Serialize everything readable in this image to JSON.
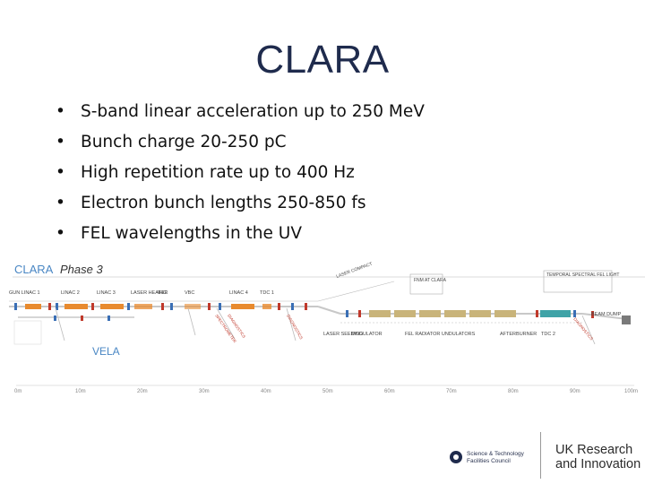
{
  "title": "CLARA",
  "bullets": [
    "S-band linear acceleration up to 250 MeV",
    "Bunch charge 20-250 pC",
    "High repetition rate up to 400 Hz",
    "Electron bunch lengths 250-850 fs",
    "FEL wavelengths in the UV"
  ],
  "diagram": {
    "machine_label": "CLARA",
    "phase_label": "Phase 3",
    "vela_label": "VELA",
    "section_labels": {
      "gun_linac1": "GUN LINAC 1",
      "linac2": "LINAC 2",
      "linac3": "LINAC 3",
      "laser_heater": "LASER HEATER",
      "four_hc": "4HC",
      "vbc": "VBC",
      "linac4": "LINAC 4",
      "tdc1": "TDC 1",
      "laser_compact": "LASER COMPACT",
      "fnm_at_clara": "FNM AT CLARA",
      "temporal_spectral": "TEMPORAL SPECTRAL FEL LIGHT",
      "beam_dump": "BEAM DUMP",
      "laser_seeding": "LASER SEEDING",
      "modulator": "MODULATOR",
      "fel_undulators": "FEL RADIATOR UNDULATORS",
      "afterburner": "AFTERBURNER",
      "tdc2": "TDC 2"
    },
    "diagnostics_labels": [
      "SPECTROMETER",
      "DIAGNOSTICS",
      "DIAGNOSTICS",
      "DIAGNOSTICS"
    ],
    "scale_ticks": [
      "0m",
      "10m",
      "20m",
      "30m",
      "40m",
      "50m",
      "60m",
      "70m",
      "80m",
      "90m",
      "100m"
    ]
  },
  "footer": {
    "stfc_line1": "Science & Technology",
    "stfc_line2": "Facilities Council",
    "ukri_line1": "UK Research",
    "ukri_line2": "and Innovation"
  },
  "colors": {
    "title": "#1f2b4d",
    "clara_label": "#4a87c4",
    "beamline": "#e88a2e",
    "undulator": "#c9b47a",
    "afterburner": "#3fa3a7"
  }
}
